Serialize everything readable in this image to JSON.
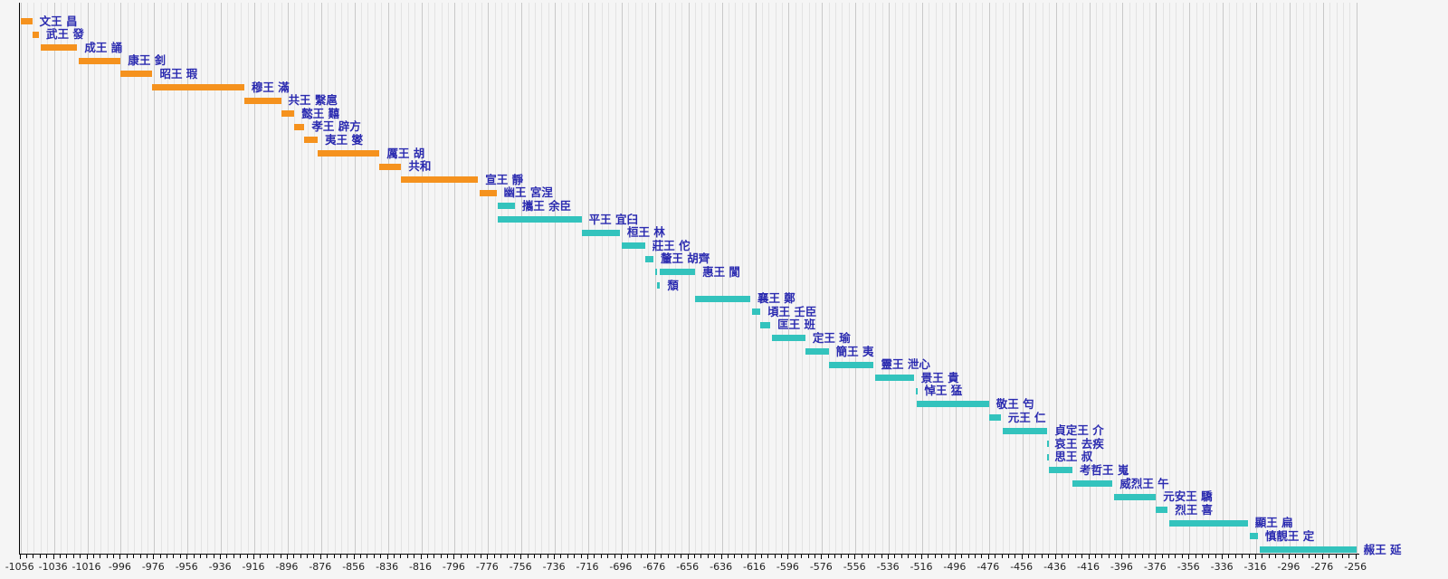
{
  "chart_data": {
    "type": "gantt-timeline",
    "title": "",
    "x_axis": {
      "min": -1056,
      "max": -256,
      "minor_step": 4,
      "major_step": 20,
      "tick_labels": [
        -1056,
        -1036,
        -1016,
        -996,
        -976,
        -956,
        -936,
        -916,
        -896,
        -876,
        -856,
        -836,
        -816,
        -796,
        -776,
        -756,
        -736,
        -716,
        -696,
        -676,
        -656,
        -636,
        -616,
        -596,
        -576,
        -556,
        -536,
        -516,
        -496,
        -476,
        -456,
        -436,
        -416,
        -396,
        -376,
        -356,
        -336,
        -316,
        -296,
        -276,
        -256
      ]
    },
    "legend": "none",
    "grid": "on",
    "kings": [
      {
        "label": "文王 昌",
        "era": "west",
        "segments": [
          [
            -1056,
            -1049
          ]
        ]
      },
      {
        "label": "武王 發",
        "era": "west",
        "segments": [
          [
            -1049,
            -1045
          ]
        ]
      },
      {
        "label": "成王 誦",
        "era": "west",
        "segments": [
          [
            -1044,
            -1022
          ]
        ]
      },
      {
        "label": "康王 釗",
        "era": "west",
        "segments": [
          [
            -1021,
            -996
          ]
        ]
      },
      {
        "label": "昭王 瑕",
        "era": "west",
        "segments": [
          [
            -996,
            -977
          ]
        ]
      },
      {
        "label": "穆王 滿",
        "era": "west",
        "segments": [
          [
            -977,
            -922
          ]
        ]
      },
      {
        "label": "共王 繄扈",
        "era": "west",
        "segments": [
          [
            -922,
            -900
          ]
        ]
      },
      {
        "label": "懿王 囏",
        "era": "west",
        "segments": [
          [
            -900,
            -892
          ]
        ]
      },
      {
        "label": "孝王 辟方",
        "era": "west",
        "segments": [
          [
            -892,
            -886
          ]
        ]
      },
      {
        "label": "夷王 燮",
        "era": "west",
        "segments": [
          [
            -886,
            -878
          ]
        ]
      },
      {
        "label": "厲王 胡",
        "era": "west",
        "segments": [
          [
            -878,
            -841
          ]
        ]
      },
      {
        "label": "共和",
        "era": "west",
        "segments": [
          [
            -841,
            -828
          ]
        ]
      },
      {
        "label": "宣王 靜",
        "era": "west",
        "segments": [
          [
            -828,
            -782
          ]
        ]
      },
      {
        "label": "幽王 宮涅",
        "era": "west",
        "segments": [
          [
            -781,
            -771
          ]
        ]
      },
      {
        "label": "攜王 余臣",
        "era": "east",
        "segments": [
          [
            -770,
            -760
          ]
        ]
      },
      {
        "label": "平王 宜臼",
        "era": "east",
        "segments": [
          [
            -770,
            -720
          ]
        ]
      },
      {
        "label": "桓王 林",
        "era": "east",
        "segments": [
          [
            -720,
            -697
          ]
        ]
      },
      {
        "label": "莊王 佗",
        "era": "east",
        "segments": [
          [
            -696,
            -682
          ]
        ]
      },
      {
        "label": "釐王 胡齊",
        "era": "east",
        "segments": [
          [
            -682,
            -677
          ]
        ]
      },
      {
        "label": "惠王 閬",
        "era": "east",
        "segments": [
          [
            -676,
            -675
          ],
          [
            -673,
            -652
          ]
        ]
      },
      {
        "label": "頹",
        "era": "east",
        "segments": [
          [
            -675,
            -673
          ]
        ]
      },
      {
        "label": "襄王 鄭",
        "era": "east",
        "segments": [
          [
            -652,
            -619
          ]
        ]
      },
      {
        "label": "頃王 壬臣",
        "era": "east",
        "segments": [
          [
            -618,
            -613
          ]
        ]
      },
      {
        "label": "匡王 班",
        "era": "east",
        "segments": [
          [
            -613,
            -607
          ]
        ]
      },
      {
        "label": "定王 瑜",
        "era": "east",
        "segments": [
          [
            -606,
            -586
          ]
        ]
      },
      {
        "label": "簡王 夷",
        "era": "east",
        "segments": [
          [
            -586,
            -572
          ]
        ]
      },
      {
        "label": "靈王 泄心",
        "era": "east",
        "segments": [
          [
            -572,
            -545
          ]
        ]
      },
      {
        "label": "景王 貴",
        "era": "east",
        "segments": [
          [
            -544,
            -521
          ]
        ]
      },
      {
        "label": "悼王 猛",
        "era": "east",
        "segments": [
          [
            -520,
            -519
          ]
        ]
      },
      {
        "label": "敬王 匄",
        "era": "east",
        "segments": [
          [
            -519,
            -476
          ]
        ]
      },
      {
        "label": "元王 仁",
        "era": "east",
        "segments": [
          [
            -476,
            -469
          ]
        ]
      },
      {
        "label": "貞定王 介",
        "era": "east",
        "segments": [
          [
            -468,
            -441
          ]
        ]
      },
      {
        "label": "哀王 去疾",
        "era": "east",
        "segments": [
          [
            -441,
            -441
          ]
        ]
      },
      {
        "label": "思王 叔",
        "era": "east",
        "segments": [
          [
            -441,
            -441
          ]
        ]
      },
      {
        "label": "考哲王 嵬",
        "era": "east",
        "segments": [
          [
            -440,
            -426
          ]
        ]
      },
      {
        "label": "威烈王 午",
        "era": "east",
        "segments": [
          [
            -426,
            -402
          ]
        ]
      },
      {
        "label": "元安王 驕",
        "era": "east",
        "segments": [
          [
            -401,
            -376
          ]
        ]
      },
      {
        "label": "烈王 喜",
        "era": "east",
        "segments": [
          [
            -376,
            -369
          ]
        ]
      },
      {
        "label": "顯王 扁",
        "era": "east",
        "segments": [
          [
            -368,
            -321
          ]
        ]
      },
      {
        "label": "慎靚王 定",
        "era": "east",
        "segments": [
          [
            -320,
            -315
          ]
        ]
      },
      {
        "label": "赧王 延",
        "era": "east",
        "segments": [
          [
            -314,
            -256
          ]
        ]
      }
    ]
  },
  "colors": {
    "western_zhou_bar": "#f5921e",
    "eastern_zhou_bar": "#33c3bd",
    "king_label_text": "#2b2bb0",
    "background": "#f5f5f5",
    "grid_minor": "#e3e3e3",
    "grid_major": "#c9c9c9",
    "axis": "#000000"
  }
}
